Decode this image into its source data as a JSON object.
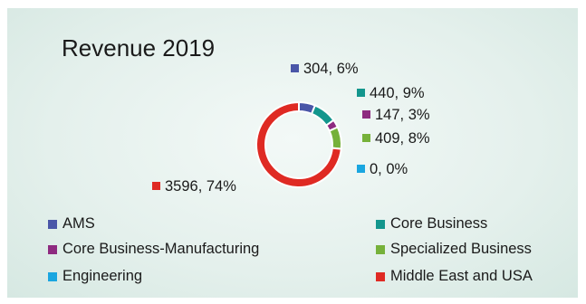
{
  "chart_data": {
    "type": "donut",
    "title": "Revenue 2019",
    "series": [
      {
        "name": "AMS",
        "value": 304,
        "percent": "6%",
        "label": "304, 6%",
        "color": "#4a56a8"
      },
      {
        "name": "Core Business",
        "value": 440,
        "percent": "9%",
        "label": "440, 9%",
        "color": "#13968d"
      },
      {
        "name": "Core Business-Manufacturing",
        "value": 147,
        "percent": "3%",
        "label": "147, 3%",
        "color": "#8e2a80"
      },
      {
        "name": "Specialized Business",
        "value": 409,
        "percent": "8%",
        "label": "409, 8%",
        "color": "#76b13a"
      },
      {
        "name": "Engineering",
        "value": 0,
        "percent": "0%",
        "label": "0, 0%",
        "color": "#1aa6e0"
      },
      {
        "name": "Middle East and USA",
        "value": 3596,
        "percent": "74%",
        "label": "3596, 74%",
        "color": "#df2a23"
      }
    ],
    "legend_position": "bottom",
    "grid": false
  }
}
